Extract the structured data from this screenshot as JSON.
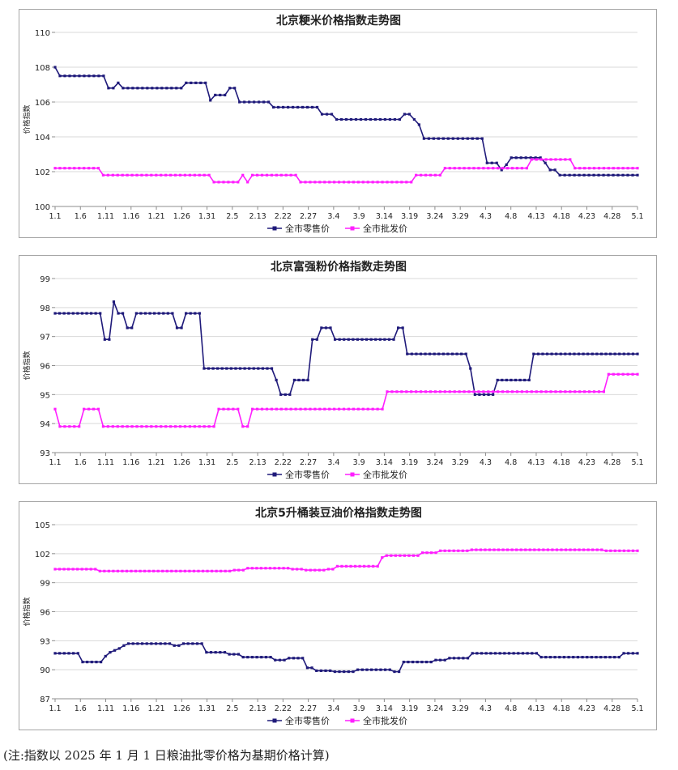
{
  "footnote": "(注:指数以 2025 年 1 月 1 日粮油批零价格为基期价格计算)",
  "colors": {
    "retail": "#1f1a7a",
    "wholesale": "#ff1fff",
    "grid": "#d9d9d9",
    "axis": "#8c8c8c"
  },
  "chart_data": [
    {
      "type": "line",
      "title": "北京粳米价格指数走势图",
      "ylabel": "价格指数",
      "ylim": [
        100,
        110
      ],
      "yticks": [
        100,
        102,
        104,
        106,
        108,
        110
      ],
      "xticks": [
        "1.1",
        "1.6",
        "1.11",
        "1.16",
        "1.21",
        "1.26",
        "1.31",
        "2.5",
        "2.13",
        "2.22",
        "2.27",
        "3.4",
        "3.9",
        "3.14",
        "3.19",
        "3.24",
        "3.29",
        "4.3",
        "4.8",
        "4.13",
        "4.18",
        "4.23",
        "4.28",
        "5.1"
      ],
      "legend": "bottom",
      "series": [
        {
          "name": "全市零售价",
          "segments": [
            [
              108.0,
              1
            ],
            [
              107.5,
              10
            ],
            [
              106.8,
              2
            ],
            [
              107.1,
              1
            ],
            [
              106.8,
              13
            ],
            [
              107.1,
              5
            ],
            [
              106.1,
              1
            ],
            [
              106.4,
              3
            ],
            [
              106.8,
              2
            ],
            [
              106.0,
              7
            ],
            [
              105.7,
              10
            ],
            [
              105.3,
              3
            ],
            [
              105.0,
              14
            ],
            [
              105.3,
              2
            ],
            [
              105.0,
              1
            ],
            [
              104.7,
              1
            ],
            [
              103.9,
              13
            ],
            [
              102.5,
              3
            ],
            [
              102.1,
              1
            ],
            [
              102.4,
              1
            ],
            [
              102.8,
              7
            ],
            [
              102.5,
              1
            ],
            [
              102.1,
              2
            ],
            [
              101.8,
              17
            ]
          ]
        },
        {
          "name": "全市批发价",
          "segments": [
            [
              102.2,
              10
            ],
            [
              101.8,
              23
            ],
            [
              101.4,
              6
            ],
            [
              101.8,
              1
            ],
            [
              101.4,
              1
            ],
            [
              101.8,
              10
            ],
            [
              101.4,
              24
            ],
            [
              101.8,
              6
            ],
            [
              102.2,
              18
            ],
            [
              102.7,
              9
            ],
            [
              102.2,
              14
            ]
          ]
        }
      ]
    },
    {
      "type": "line",
      "title": "北京富强粉价格指数走势图",
      "ylabel": "价格指数",
      "ylim": [
        93,
        99
      ],
      "yticks": [
        93,
        94,
        95,
        96,
        97,
        98,
        99
      ],
      "xticks": [
        "1.1",
        "1.6",
        "1.11",
        "1.16",
        "1.21",
        "1.26",
        "1.31",
        "2.5",
        "2.13",
        "2.22",
        "2.27",
        "3.4",
        "3.9",
        "3.14",
        "3.19",
        "3.24",
        "3.29",
        "4.3",
        "4.8",
        "4.13",
        "4.18",
        "4.23",
        "4.28",
        "5.1"
      ],
      "legend": "bottom",
      "series": [
        {
          "name": "全市零售价",
          "segments": [
            [
              97.8,
              11
            ],
            [
              96.9,
              2
            ],
            [
              98.2,
              1
            ],
            [
              97.8,
              2
            ],
            [
              97.3,
              2
            ],
            [
              97.8,
              9
            ],
            [
              97.3,
              2
            ],
            [
              97.8,
              4
            ],
            [
              95.9,
              16
            ],
            [
              95.5,
              1
            ],
            [
              95.0,
              3
            ],
            [
              95.5,
              4
            ],
            [
              96.9,
              2
            ],
            [
              97.3,
              3
            ],
            [
              96.9,
              14
            ],
            [
              97.3,
              2
            ],
            [
              96.4,
              14
            ],
            [
              95.9,
              1
            ],
            [
              95.0,
              5
            ],
            [
              95.5,
              8
            ],
            [
              96.4,
              24
            ]
          ]
        },
        {
          "name": "全市批发价",
          "segments": [
            [
              94.5,
              1
            ],
            [
              93.9,
              5
            ],
            [
              94.5,
              4
            ],
            [
              93.9,
              24
            ],
            [
              94.5,
              5
            ],
            [
              93.9,
              2
            ],
            [
              94.5,
              28
            ],
            [
              95.1,
              46
            ],
            [
              95.7,
              7
            ]
          ]
        }
      ]
    },
    {
      "type": "line",
      "title": "北京5升桶装豆油价格指数走势图",
      "ylabel": "价格指数",
      "ylim": [
        87,
        105
      ],
      "yticks": [
        87,
        90,
        93,
        96,
        99,
        102,
        105
      ],
      "xticks": [
        "1.1",
        "1.6",
        "1.11",
        "1.16",
        "1.21",
        "1.26",
        "1.31",
        "2.5",
        "2.13",
        "2.22",
        "2.27",
        "3.4",
        "3.9",
        "3.14",
        "3.19",
        "3.24",
        "3.29",
        "4.3",
        "4.8",
        "4.13",
        "4.18",
        "4.23",
        "4.28",
        "5.1"
      ],
      "legend": "bottom",
      "series": [
        {
          "name": "全市零售价",
          "segments": [
            [
              91.7,
              6
            ],
            [
              90.8,
              5
            ],
            [
              91.4,
              1
            ],
            [
              91.8,
              1
            ],
            [
              92.0,
              1
            ],
            [
              92.2,
              1
            ],
            [
              92.5,
              1
            ],
            [
              92.7,
              10
            ],
            [
              92.5,
              2
            ],
            [
              92.7,
              5
            ],
            [
              91.8,
              5
            ],
            [
              91.6,
              3
            ],
            [
              91.3,
              7
            ],
            [
              91.0,
              3
            ],
            [
              91.2,
              4
            ],
            [
              90.2,
              2
            ],
            [
              89.9,
              4
            ],
            [
              89.8,
              5
            ],
            [
              90.0,
              8
            ],
            [
              89.8,
              2
            ],
            [
              90.8,
              7
            ],
            [
              91.0,
              3
            ],
            [
              91.2,
              5
            ],
            [
              91.7,
              15
            ],
            [
              91.3,
              18
            ],
            [
              91.7,
              4
            ]
          ]
        },
        {
          "name": "全市批发价",
          "segments": [
            [
              100.4,
              10
            ],
            [
              100.2,
              30
            ],
            [
              100.3,
              3
            ],
            [
              100.5,
              10
            ],
            [
              100.4,
              3
            ],
            [
              100.3,
              5
            ],
            [
              100.4,
              2
            ],
            [
              100.7,
              10
            ],
            [
              101.6,
              1
            ],
            [
              101.8,
              8
            ],
            [
              102.1,
              4
            ],
            [
              102.3,
              7
            ],
            [
              102.4,
              30
            ],
            [
              102.3,
              8
            ]
          ]
        }
      ]
    }
  ]
}
